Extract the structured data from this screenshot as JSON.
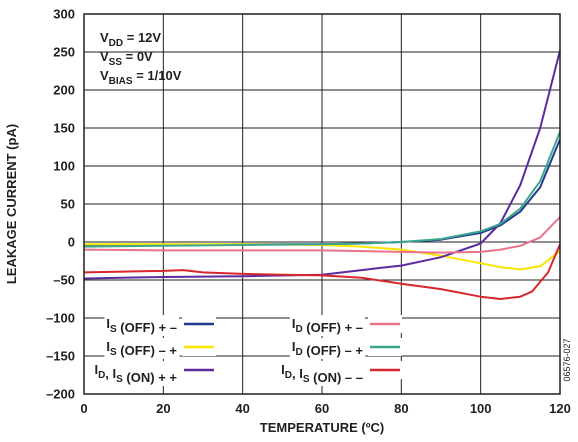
{
  "chart_data": {
    "type": "line",
    "xlabel": "TEMPERATURE (ºC)",
    "ylabel": "LEAKAGE CURRENT (pA)",
    "xlim": [
      0,
      120
    ],
    "ylim": [
      -200,
      300
    ],
    "xticks": [
      0,
      20,
      40,
      60,
      80,
      100,
      120
    ],
    "yticks": [
      -200,
      -150,
      -100,
      -50,
      0,
      50,
      100,
      150,
      200,
      250,
      300
    ],
    "grid": true,
    "legend_position": "bottom-left",
    "figure_id": "06576-027",
    "conditions": [
      {
        "main": "V",
        "sub": "DD",
        "rest": " = 12V"
      },
      {
        "main": "V",
        "sub": "SS",
        "rest": " = 0V"
      },
      {
        "main": "V",
        "sub": "BIAS",
        "rest": " = 1/10V"
      }
    ],
    "series": [
      {
        "name": "IS (OFF) + –",
        "label_parts": [
          {
            "t": "I"
          },
          {
            "sub": "S"
          },
          {
            "t": " (OFF) + –"
          }
        ],
        "color": "#1f3b8f",
        "x": [
          0,
          20,
          40,
          60,
          70,
          80,
          90,
          100,
          105,
          110,
          115,
          120
        ],
        "values": [
          -5,
          -4,
          -3,
          -3,
          -2,
          0,
          3,
          12,
          22,
          40,
          72,
          135
        ]
      },
      {
        "name": "IS (OFF) – +",
        "label_parts": [
          {
            "t": "I"
          },
          {
            "sub": "S"
          },
          {
            "t": " (OFF) – +"
          }
        ],
        "color": "#f7e600",
        "x": [
          0,
          20,
          40,
          60,
          70,
          80,
          90,
          100,
          105,
          110,
          115,
          120
        ],
        "values": [
          -3,
          -3,
          -3,
          -4,
          -6,
          -10,
          -18,
          -28,
          -33,
          -36,
          -32,
          -12
        ]
      },
      {
        "name": "ID, IS (ON) + +",
        "label_parts": [
          {
            "t": "I"
          },
          {
            "sub": "D"
          },
          {
            "t": ", I"
          },
          {
            "sub": "S"
          },
          {
            "t": " (ON) + +"
          }
        ],
        "color": "#5b2c9e",
        "x": [
          0,
          20,
          40,
          60,
          70,
          75,
          80,
          90,
          100,
          105,
          110,
          115,
          120
        ],
        "values": [
          -48,
          -46,
          -45,
          -43,
          -37,
          -34,
          -31,
          -20,
          -2,
          25,
          75,
          150,
          252
        ]
      },
      {
        "name": "ID (OFF) + –",
        "label_parts": [
          {
            "t": "I"
          },
          {
            "sub": "D"
          },
          {
            "t": " (OFF) + –"
          }
        ],
        "color": "#e8738a",
        "x": [
          0,
          20,
          40,
          60,
          70,
          80,
          90,
          100,
          105,
          110,
          115,
          120
        ],
        "values": [
          -10,
          -11,
          -11,
          -11,
          -12,
          -13,
          -14,
          -13,
          -10,
          -5,
          6,
          33
        ]
      },
      {
        "name": "ID (OFF) – +",
        "label_parts": [
          {
            "t": "I"
          },
          {
            "sub": "D"
          },
          {
            "t": " (OFF) – +"
          }
        ],
        "color": "#3fa58f",
        "x": [
          0,
          20,
          40,
          60,
          70,
          80,
          90,
          100,
          105,
          110,
          115,
          120
        ],
        "values": [
          -6,
          -5,
          -4,
          -3,
          -2,
          0,
          4,
          14,
          24,
          44,
          80,
          145
        ]
      },
      {
        "name": "ID, IS (ON) – –",
        "label_parts": [
          {
            "t": "I"
          },
          {
            "sub": "D"
          },
          {
            "t": ", I"
          },
          {
            "sub": "S"
          },
          {
            "t": " (ON) – –"
          }
        ],
        "color": "#d7262e",
        "x": [
          0,
          10,
          20,
          25,
          30,
          40,
          50,
          60,
          70,
          80,
          90,
          100,
          105,
          110,
          113,
          117,
          120
        ],
        "values": [
          -40,
          -39,
          -38,
          -37,
          -40,
          -42,
          -43,
          -44,
          -47,
          -55,
          -62,
          -72,
          -75,
          -72,
          -65,
          -40,
          -3
        ]
      }
    ]
  }
}
